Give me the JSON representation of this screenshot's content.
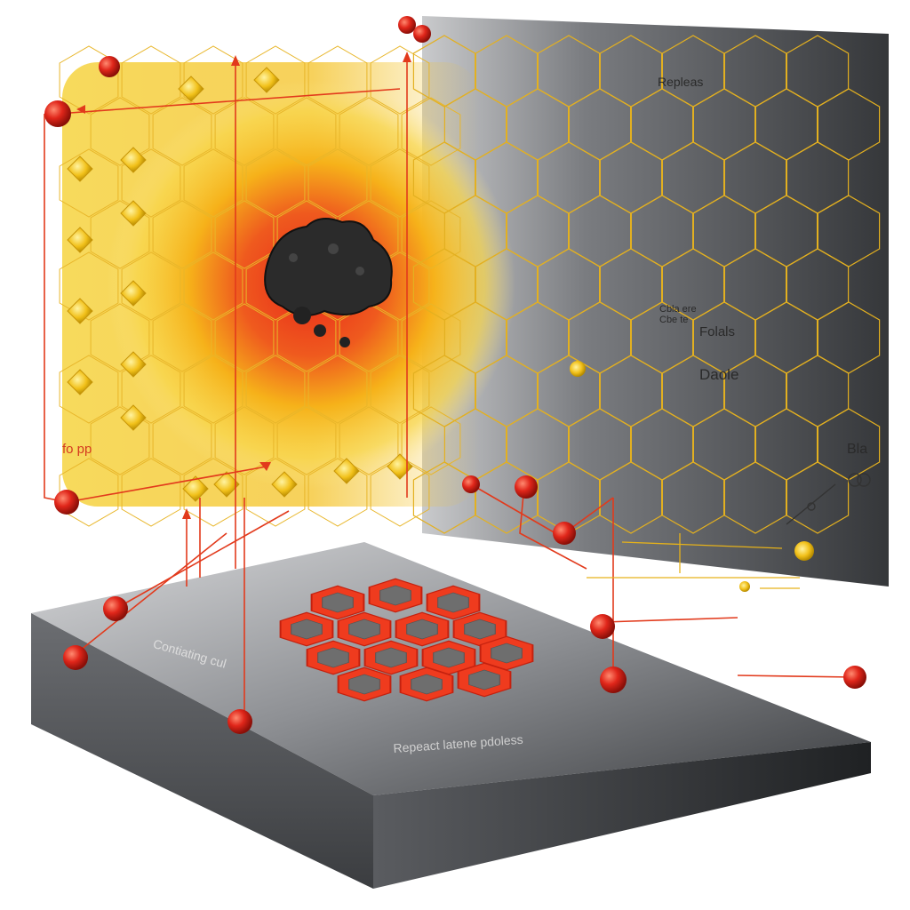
{
  "labels": {
    "top_right": "Repleas",
    "mid_right_small": "Cbla ere\nCbe te",
    "mid_right": "Folals",
    "right_lower": "Daole",
    "far_right": "Bla",
    "left": "fo pp",
    "base_left": "Contiating cul",
    "base_bottom": "Repeact latene pdoless"
  },
  "colors": {
    "accent_red": "#e23a1c",
    "accent_yellow": "#f2c11a",
    "panel_dark": "#3d3f42",
    "base_dark": "#2e3033",
    "hex_red": "#ef3b1e"
  },
  "icons": [
    "molecule-icon",
    "rock-particle-icon",
    "sphere-node-icon",
    "arrow-icon"
  ]
}
